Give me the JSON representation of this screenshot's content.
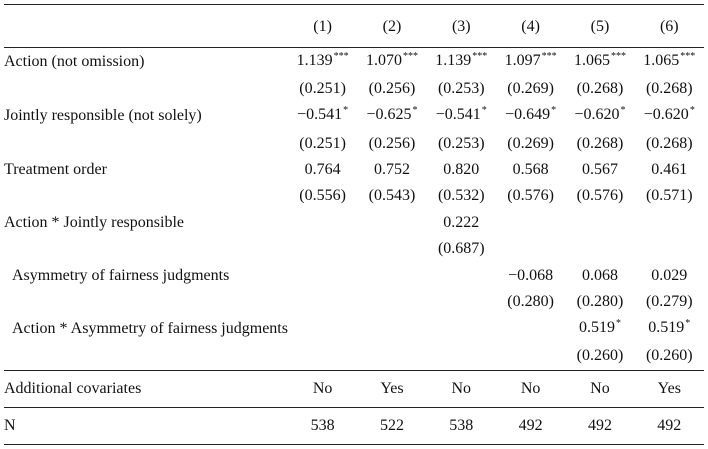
{
  "columns": [
    "(1)",
    "(2)",
    "(3)",
    "(4)",
    "(5)",
    "(6)"
  ],
  "rows": [
    {
      "label": "Action (not omission)",
      "indent": false,
      "coef": [
        [
          "1.139",
          "***"
        ],
        [
          "1.070",
          "***"
        ],
        [
          "1.139",
          "***"
        ],
        [
          "1.097",
          "***"
        ],
        [
          "1.065",
          "***"
        ],
        [
          "1.065",
          "***"
        ]
      ],
      "se": [
        "(0.251)",
        "(0.256)",
        "(0.253)",
        "(0.269)",
        "(0.268)",
        "(0.268)"
      ]
    },
    {
      "label": "Jointly responsible (not solely)",
      "indent": false,
      "coef": [
        [
          "−0.541",
          "*"
        ],
        [
          "−0.625",
          "*"
        ],
        [
          "−0.541",
          "*"
        ],
        [
          "−0.649",
          "*"
        ],
        [
          "−0.620",
          "*"
        ],
        [
          "−0.620",
          "*"
        ]
      ],
      "se": [
        "(0.251)",
        "(0.256)",
        "(0.253)",
        "(0.269)",
        "(0.268)",
        "(0.268)"
      ]
    },
    {
      "label": "Treatment order",
      "indent": false,
      "coef": [
        [
          "0.764",
          ""
        ],
        [
          "0.752",
          ""
        ],
        [
          "0.820",
          ""
        ],
        [
          "0.568",
          ""
        ],
        [
          "0.567",
          ""
        ],
        [
          "0.461",
          ""
        ]
      ],
      "se": [
        "(0.556)",
        "(0.543)",
        "(0.532)",
        "(0.576)",
        "(0.576)",
        "(0.571)"
      ]
    },
    {
      "label": "Action * Jointly responsible",
      "indent": false,
      "coef": [
        [
          "",
          ""
        ],
        [
          "",
          ""
        ],
        [
          "0.222",
          ""
        ],
        [
          "",
          ""
        ],
        [
          "",
          ""
        ],
        [
          "",
          ""
        ]
      ],
      "se": [
        "",
        "",
        "(0.687)",
        "",
        "",
        ""
      ]
    },
    {
      "label": "Asymmetry of fairness judgments",
      "indent": true,
      "coef": [
        [
          "",
          ""
        ],
        [
          "",
          ""
        ],
        [
          "",
          ""
        ],
        [
          "−0.068",
          ""
        ],
        [
          "0.068",
          ""
        ],
        [
          "0.029",
          ""
        ]
      ],
      "se": [
        "",
        "",
        "",
        "(0.280)",
        "(0.280)",
        "(0.279)"
      ]
    },
    {
      "label": "Action * Asymmetry of fairness judgments",
      "indent": true,
      "coef": [
        [
          "",
          ""
        ],
        [
          "",
          ""
        ],
        [
          "",
          ""
        ],
        [
          "",
          ""
        ],
        [
          "0.519",
          "*"
        ],
        [
          "0.519",
          "*"
        ]
      ],
      "se": [
        "",
        "",
        "",
        "",
        "(0.260)",
        "(0.260)"
      ]
    }
  ],
  "footer": [
    {
      "label": "Additional covariates",
      "values": [
        "No",
        "Yes",
        "No",
        "No",
        "No",
        "Yes"
      ]
    },
    {
      "label": "N",
      "values": [
        "538",
        "522",
        "538",
        "492",
        "492",
        "492"
      ]
    }
  ]
}
